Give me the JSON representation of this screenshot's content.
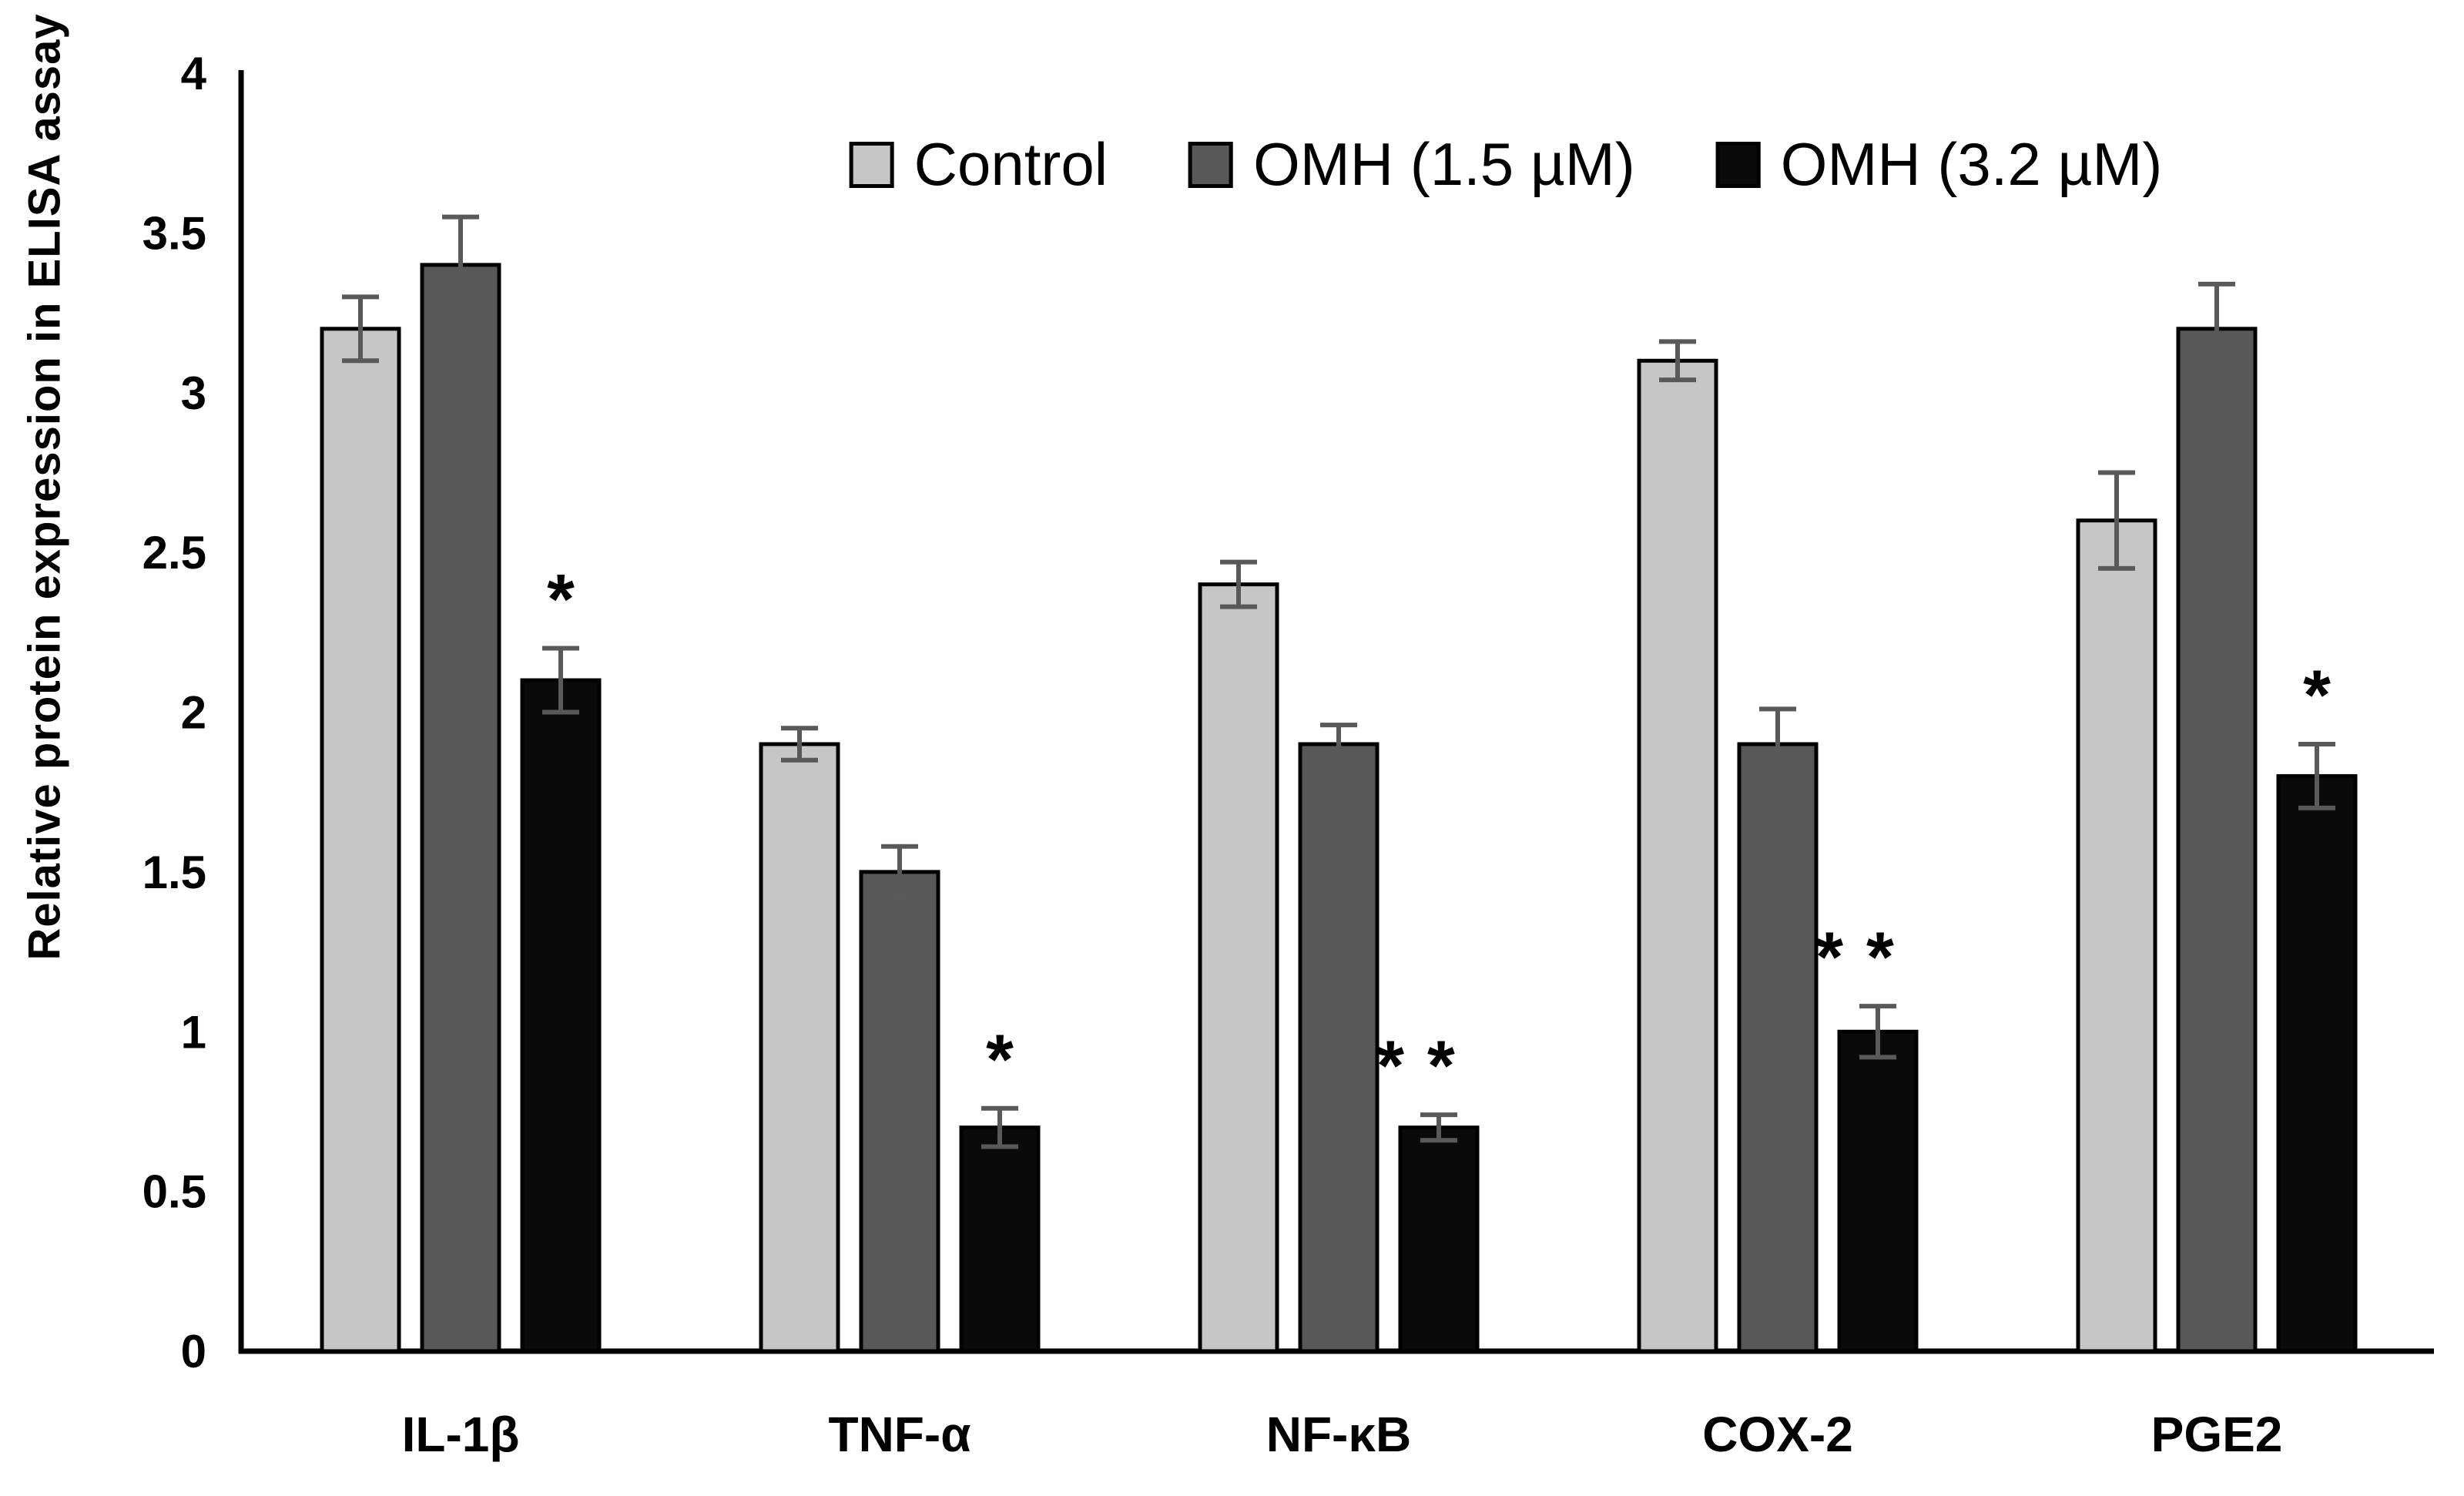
{
  "chart_data": {
    "type": "bar",
    "title": "",
    "xlabel": "",
    "ylabel": "Relative protein expression in ELISA assay",
    "ylim": [
      0,
      4
    ],
    "yticks": [
      0,
      0.5,
      1,
      1.5,
      2,
      2.5,
      3,
      3.5,
      4
    ],
    "grid": false,
    "legend_position": "top-center",
    "background": "#ffffff",
    "axis_color": "#000000",
    "error_bar_color": "#595959",
    "bar_outline_color": "#000000",
    "categories": [
      "IL-1β",
      "TNF-α",
      "NF-κB",
      "COX-2",
      "PGE2"
    ],
    "series": [
      {
        "name": "Control",
        "color": "#c6c6c6",
        "values": [
          3.2,
          1.9,
          2.4,
          3.1,
          2.6
        ],
        "errors": [
          0.1,
          0.05,
          0.07,
          0.06,
          0.15
        ]
      },
      {
        "name": "OMH (1.5 µM)",
        "color": "#585858",
        "values": [
          3.4,
          1.5,
          1.9,
          1.9,
          3.2
        ],
        "errors": [
          0.15,
          0.08,
          0.06,
          0.11,
          0.14
        ]
      },
      {
        "name": "OMH (3.2 µM)",
        "color": "#0a0a0a",
        "values": [
          2.1,
          0.7,
          0.7,
          1.0,
          1.8
        ],
        "errors": [
          0.1,
          0.06,
          0.04,
          0.08,
          0.1
        ]
      }
    ],
    "significance_markers": {
      "on_series": "OMH (3.2 µM)",
      "labels": [
        "*",
        "*",
        "**",
        "**",
        "*"
      ]
    }
  }
}
